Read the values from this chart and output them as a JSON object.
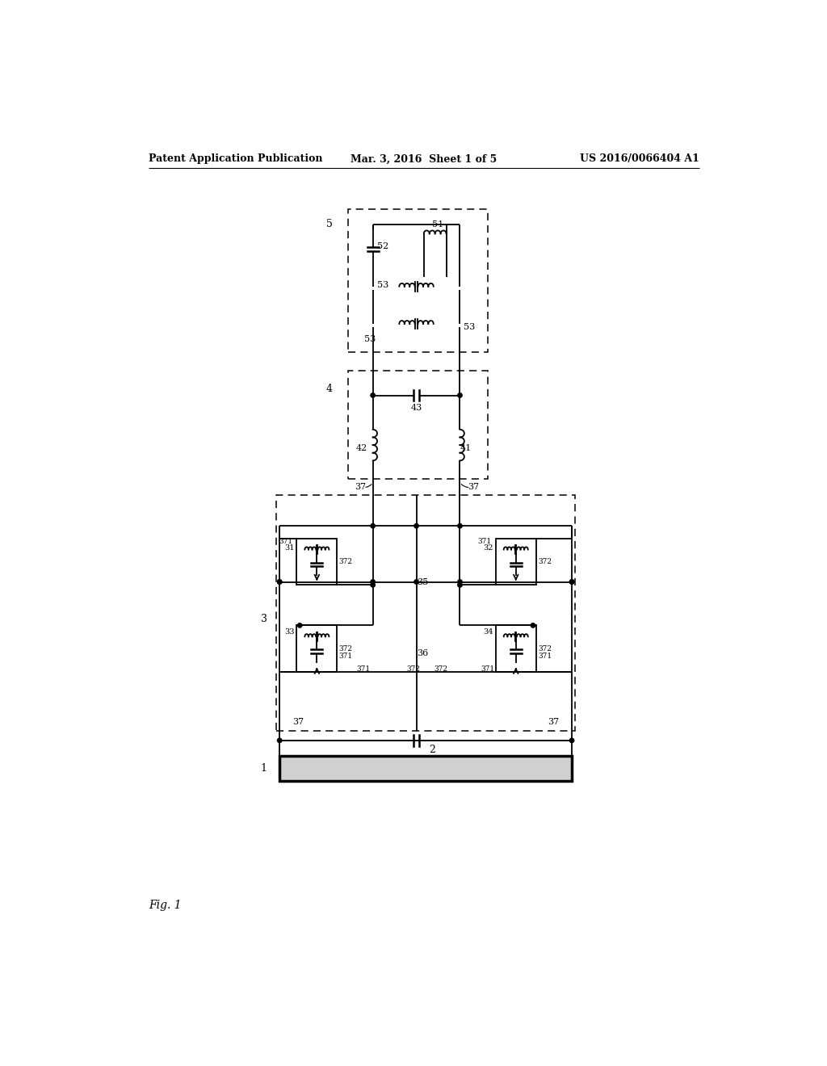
{
  "bg_color": "#ffffff",
  "header_left": "Patent Application Publication",
  "header_center": "Mar. 3, 2016  Sheet 1 of 5",
  "header_right": "US 2016/0066404 A1",
  "footer_label": "Fig. 1",
  "lw": 1.3,
  "dlw": 1.1
}
